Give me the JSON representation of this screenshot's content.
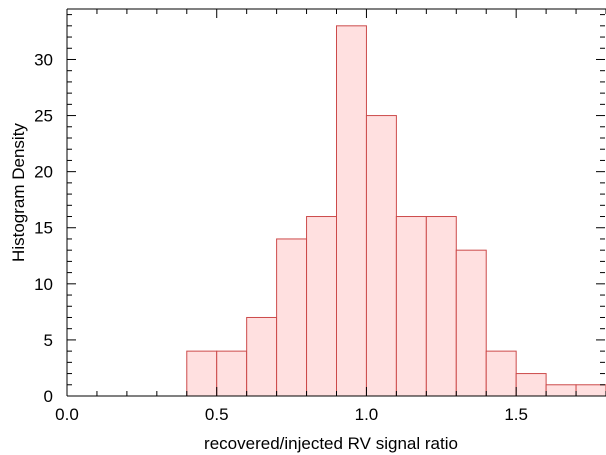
{
  "chart_data": {
    "type": "bar",
    "title": "",
    "xlabel": "recovered/injected RV signal ratio",
    "ylabel": "Histogram Density",
    "xlim": [
      0.0,
      1.8
    ],
    "ylim": [
      0,
      34.5
    ],
    "bin_width": 0.1,
    "bin_edges_start": 0.4,
    "values": [
      4,
      4,
      7,
      14,
      16,
      33,
      25,
      16,
      16,
      13,
      4,
      2,
      1,
      1
    ],
    "xticks": [
      0.0,
      0.5,
      1.0,
      1.5
    ],
    "xtick_labels": [
      "0.0",
      "0.5",
      "1.0",
      "1.5"
    ],
    "yticks": [
      0,
      5,
      10,
      15,
      20,
      25,
      30
    ],
    "ytick_labels": [
      "0",
      "5",
      "10",
      "15",
      "20",
      "25",
      "30"
    ],
    "grid": false,
    "colors": {
      "fill": "#ffe0e0",
      "stroke": "#cc4a4a"
    }
  }
}
